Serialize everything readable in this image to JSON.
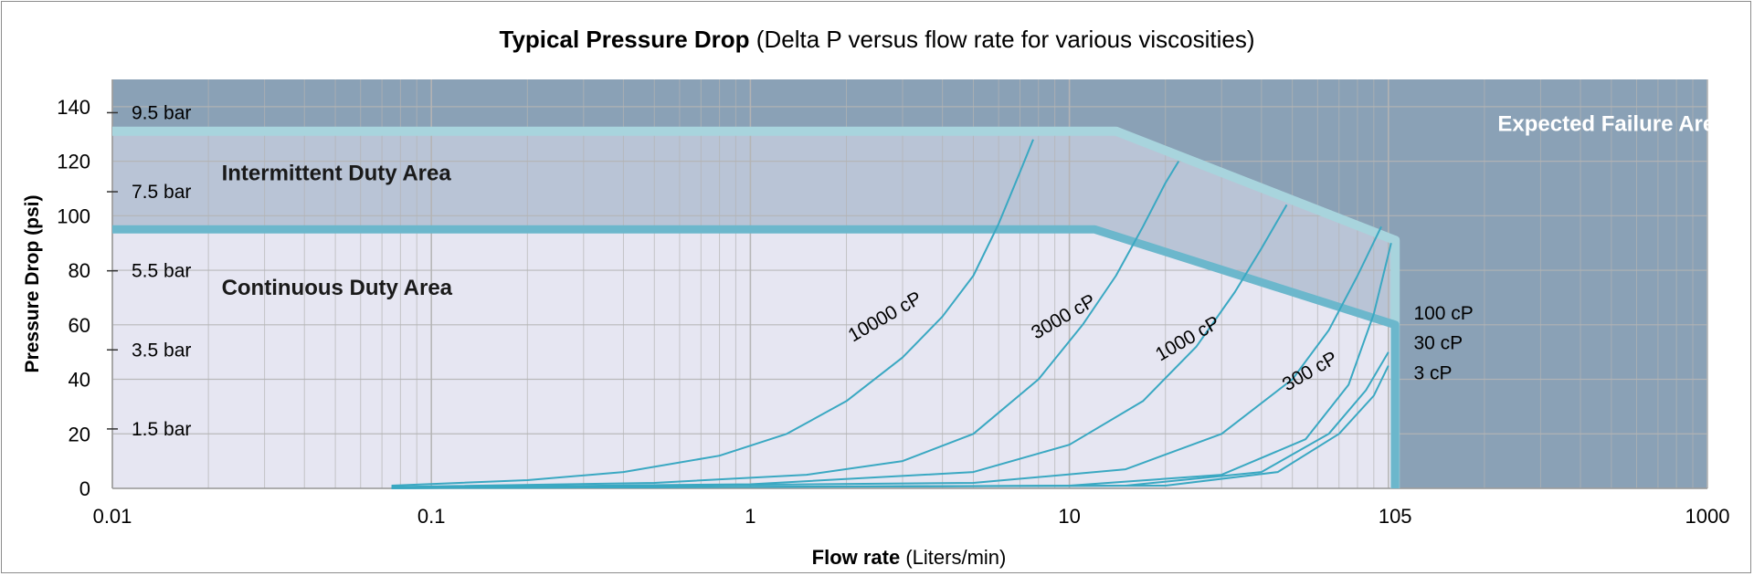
{
  "chart_data": {
    "type": "line",
    "title_bold": "Typical Pressure Drop",
    "title_rest": " (Delta P versus flow rate for various viscosities)",
    "xlabel_bold": "Flow rate",
    "xlabel_rest": " (Liters/min)",
    "ylabel": "Pressure Drop (psi)",
    "x_scale": "log",
    "xlim": [
      0.01,
      1000
    ],
    "ylim": [
      0,
      150
    ],
    "x_tick_labels": [
      {
        "value": 0.01,
        "label": "0.01"
      },
      {
        "value": 0.1,
        "label": "0.1"
      },
      {
        "value": 1,
        "label": "1"
      },
      {
        "value": 10,
        "label": "10"
      },
      {
        "value": 105,
        "label": "105"
      },
      {
        "value": 1000,
        "label": "1000"
      }
    ],
    "y_ticks": [
      0,
      20,
      40,
      60,
      80,
      100,
      120,
      140
    ],
    "bar_labels": [
      {
        "value": 137.8,
        "label": "9.5 bar"
      },
      {
        "value": 108.8,
        "label": "7.5 bar"
      },
      {
        "value": 79.8,
        "label": "5.5 bar"
      },
      {
        "value": 50.8,
        "label": "3.5 bar"
      },
      {
        "value": 21.8,
        "label": "1.5 bar"
      }
    ],
    "regions": [
      {
        "name": "Continuous Duty Area",
        "label_x": 0.022,
        "label_y": 71
      },
      {
        "name": "Intermittent Duty Area",
        "label_x": 0.022,
        "label_y": 113
      },
      {
        "name": "Expected Failure Area",
        "label_x": 220,
        "label_y": 131
      }
    ],
    "intermittent_limit": [
      [
        0.01,
        131
      ],
      [
        14,
        131
      ],
      [
        105,
        91
      ],
      [
        105,
        0
      ]
    ],
    "continuous_limit": [
      [
        0.01,
        95
      ],
      [
        12,
        95
      ],
      [
        105,
        60
      ],
      [
        105,
        0
      ]
    ],
    "series": [
      {
        "name": "10000 cP",
        "points": [
          [
            0.075,
            1
          ],
          [
            0.2,
            3
          ],
          [
            0.4,
            6
          ],
          [
            0.8,
            12
          ],
          [
            1.3,
            20
          ],
          [
            2,
            32
          ],
          [
            3,
            48
          ],
          [
            4,
            63
          ],
          [
            5,
            78
          ],
          [
            6,
            97
          ],
          [
            7,
            116
          ],
          [
            7.7,
            128
          ]
        ],
        "label_x": 2.7,
        "label_y": 61,
        "angle": -30
      },
      {
        "name": "3000 cP",
        "points": [
          [
            0.075,
            0.5
          ],
          [
            0.5,
            2
          ],
          [
            1.5,
            5
          ],
          [
            3,
            10
          ],
          [
            5,
            20
          ],
          [
            8,
            40
          ],
          [
            11,
            60
          ],
          [
            14,
            78
          ],
          [
            17,
            96
          ],
          [
            20,
            112
          ],
          [
            22,
            120
          ]
        ],
        "label_x": 9.8,
        "label_y": 61,
        "angle": -30
      },
      {
        "name": "1000 cP",
        "points": [
          [
            0.075,
            0.3
          ],
          [
            1,
            1.5
          ],
          [
            5,
            6
          ],
          [
            10,
            16
          ],
          [
            17,
            32
          ],
          [
            25,
            52
          ],
          [
            33,
            72
          ],
          [
            40,
            88
          ],
          [
            48,
            104
          ]
        ],
        "label_x": 24,
        "label_y": 53,
        "angle": -30
      },
      {
        "name": "300 cP",
        "points": [
          [
            0.075,
            0.2
          ],
          [
            5,
            2
          ],
          [
            15,
            7
          ],
          [
            30,
            20
          ],
          [
            50,
            40
          ],
          [
            65,
            58
          ],
          [
            80,
            78
          ],
          [
            95,
            96
          ]
        ],
        "label_x": 58,
        "label_y": 41,
        "angle": -30
      },
      {
        "name": "100 cP",
        "points": [
          [
            0.075,
            0.1
          ],
          [
            10,
            1
          ],
          [
            30,
            5
          ],
          [
            55,
            18
          ],
          [
            75,
            38
          ],
          [
            90,
            64
          ],
          [
            102,
            90
          ]
        ],
        "label_x": 120,
        "label_y": 62,
        "angle": 0
      },
      {
        "name": "30 cP",
        "points": [
          [
            0.075,
            0.1
          ],
          [
            15,
            1
          ],
          [
            40,
            6
          ],
          [
            65,
            20
          ],
          [
            85,
            36
          ],
          [
            100,
            50
          ]
        ],
        "label_x": 120,
        "label_y": 51,
        "angle": 0
      },
      {
        "name": "3 cP",
        "points": [
          [
            0.075,
            0.1
          ],
          [
            20,
            1
          ],
          [
            45,
            6
          ],
          [
            70,
            20
          ],
          [
            90,
            34
          ],
          [
            100,
            45
          ]
        ],
        "label_x": 120,
        "label_y": 40,
        "angle": 0
      }
    ],
    "colors": {
      "failure_area": "#8aa1b6",
      "intermittent_area": "#b9c4d6",
      "continuous_area": "#e6e6f2",
      "intermittent_line": "#a8d4dd",
      "continuous_line": "#6cb7cc",
      "curve": "#3aa8c2",
      "grid": "#b4b4b4"
    }
  }
}
